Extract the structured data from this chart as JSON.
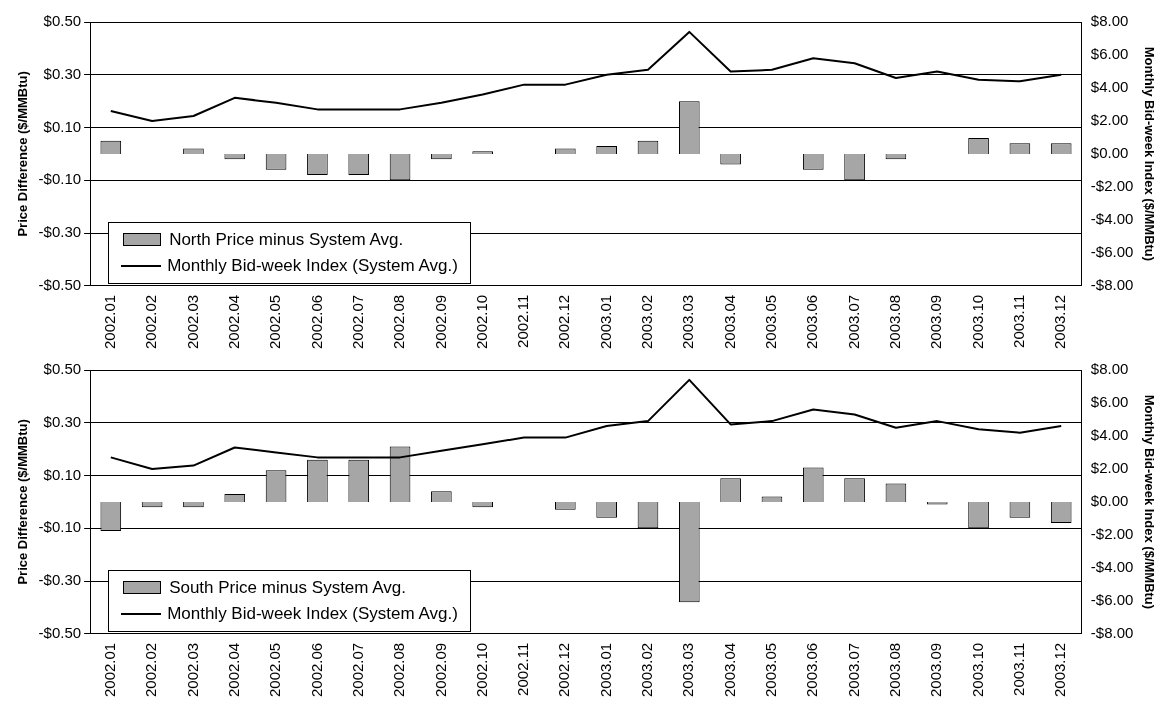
{
  "chart_data": [
    {
      "type": "bar",
      "categories": [
        "2002.01",
        "2002.02",
        "2002.03",
        "2002.04",
        "2002.05",
        "2002.06",
        "2002.07",
        "2002.08",
        "2002.09",
        "2002.10",
        "2002.11",
        "2002.12",
        "2003.01",
        "2003.02",
        "2003.03",
        "2003.04",
        "2003.05",
        "2003.06",
        "2003.07",
        "2003.08",
        "2003.09",
        "2003.10",
        "2003.11",
        "2003.12"
      ],
      "series": [
        {
          "name": "North Price minus System Avg.",
          "color": "#a6a6a6",
          "values": [
            0.05,
            null,
            0.02,
            -0.02,
            -0.06,
            -0.08,
            -0.08,
            -0.1,
            -0.02,
            0.01,
            0,
            0.02,
            0.03,
            0.05,
            0.2,
            -0.04,
            0,
            -0.06,
            -0.1,
            -0.02,
            0,
            0.06,
            0.04,
            0.04
          ]
        },
        {
          "name": "Monthly Bid-week Index (System Avg.)",
          "type": "line",
          "axis": "y2",
          "color": "#000000",
          "values": [
            2.6,
            2.0,
            2.3,
            3.4,
            3.1,
            2.7,
            2.7,
            2.7,
            3.1,
            3.6,
            4.2,
            4.2,
            4.8,
            5.1,
            7.4,
            5.0,
            5.1,
            5.8,
            5.5,
            4.6,
            5.0,
            4.5,
            4.4,
            4.8
          ]
        }
      ],
      "ylabel": "Price Difference ($/MMBtu)",
      "y2label": "Monthly Bid-week Index ($/MMBtu)",
      "ylim": [
        -0.5,
        0.5
      ],
      "yticks": [
        {
          "value": -0.5,
          "label": "-$0.50"
        },
        {
          "value": -0.3,
          "label": "-$0.30"
        },
        {
          "value": -0.1,
          "label": "-$0.10"
        },
        {
          "value": 0.1,
          "label": "$0.10"
        },
        {
          "value": 0.3,
          "label": "$0.30"
        },
        {
          "value": 0.5,
          "label": "$0.50"
        }
      ],
      "y2lim": [
        -8,
        8
      ],
      "y2ticks": [
        {
          "value": -8,
          "label": "-$8.00"
        },
        {
          "value": -6,
          "label": "-$6.00"
        },
        {
          "value": -4,
          "label": "-$4.00"
        },
        {
          "value": -2,
          "label": "-$2.00"
        },
        {
          "value": 0,
          "label": "$0.00"
        },
        {
          "value": 2,
          "label": "$2.00"
        },
        {
          "value": 4,
          "label": "$4.00"
        },
        {
          "value": 6,
          "label": "$6.00"
        },
        {
          "value": 8,
          "label": "$8.00"
        }
      ],
      "grid": "y",
      "legend": "bottom left",
      "marker": "none"
    },
    {
      "type": "bar",
      "categories": [
        "2002.01",
        "2002.02",
        "2002.03",
        "2002.04",
        "2002.05",
        "2002.06",
        "2002.07",
        "2002.08",
        "2002.09",
        "2002.10",
        "2002.11",
        "2002.12",
        "2003.01",
        "2003.02",
        "2003.03",
        "2003.04",
        "2003.05",
        "2003.06",
        "2003.07",
        "2003.08",
        "2003.09",
        "2003.10",
        "2003.11",
        "2003.12"
      ],
      "series": [
        {
          "name": "South Price minus System Avg.",
          "color": "#a6a6a6",
          "values": [
            -0.11,
            -0.02,
            -0.02,
            0.03,
            0.12,
            0.16,
            0.16,
            0.21,
            0.04,
            -0.02,
            null,
            -0.03,
            -0.06,
            -0.1,
            -0.38,
            0.09,
            0.02,
            0.13,
            0.09,
            0.07,
            -0.01,
            -0.1,
            -0.06,
            -0.08
          ]
        },
        {
          "name": "Monthly Bid-week Index (System Avg.)",
          "type": "line",
          "axis": "y2",
          "color": "#000000",
          "values": [
            2.7,
            2.0,
            2.2,
            3.3,
            3.0,
            2.7,
            2.7,
            2.7,
            3.1,
            3.5,
            3.9,
            3.9,
            4.6,
            4.9,
            7.4,
            4.7,
            4.9,
            5.6,
            5.3,
            4.5,
            4.9,
            4.4,
            4.2,
            4.6
          ]
        }
      ],
      "ylabel": "Price Difference ($/MMBtu)",
      "y2label": "Monthly Bid-week Index ($/MMBtu)",
      "ylim": [
        -0.5,
        0.5
      ],
      "yticks": [
        {
          "value": -0.5,
          "label": "-$0.50"
        },
        {
          "value": -0.3,
          "label": "-$0.30"
        },
        {
          "value": -0.1,
          "label": "-$0.10"
        },
        {
          "value": 0.1,
          "label": "$0.10"
        },
        {
          "value": 0.3,
          "label": "$0.30"
        },
        {
          "value": 0.5,
          "label": "$0.50"
        }
      ],
      "y2lim": [
        -8,
        8
      ],
      "y2ticks": [
        {
          "value": -8,
          "label": "-$8.00"
        },
        {
          "value": -6,
          "label": "-$6.00"
        },
        {
          "value": -4,
          "label": "-$4.00"
        },
        {
          "value": -2,
          "label": "-$2.00"
        },
        {
          "value": 0,
          "label": "$0.00"
        },
        {
          "value": 2,
          "label": "$2.00"
        },
        {
          "value": 4,
          "label": "$4.00"
        },
        {
          "value": 6,
          "label": "$6.00"
        },
        {
          "value": 8,
          "label": "$8.00"
        }
      ],
      "grid": "y",
      "legend": "bottom left",
      "marker": "none"
    }
  ]
}
